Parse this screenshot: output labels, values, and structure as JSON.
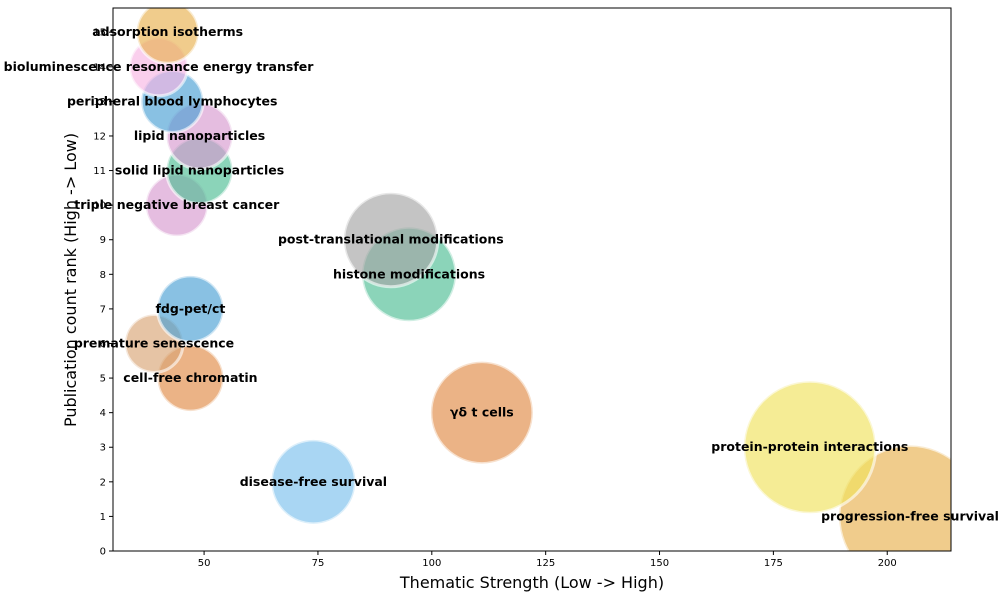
{
  "chart_data": {
    "type": "scatter",
    "title": "",
    "xlabel": "Thematic Strength (Low -> High)",
    "ylabel": "Publication count rank (High -> Low)",
    "xlim": [
      30,
      214
    ],
    "ylim": [
      0,
      15.7
    ],
    "xticks": [
      50,
      75,
      100,
      125,
      150,
      175,
      200
    ],
    "yticks": [
      0,
      1,
      2,
      3,
      4,
      5,
      6,
      7,
      8,
      9,
      10,
      11,
      12,
      13,
      14,
      15
    ],
    "grid": false,
    "points": [
      {
        "label": "progression-free survival",
        "x": 205,
        "y": 1,
        "size": 71,
        "color": "#e8b04f"
      },
      {
        "label": "disease-free survival",
        "x": 74,
        "y": 2,
        "size": 42,
        "color": "#7bc0ec"
      },
      {
        "label": "protein-protein interactions",
        "x": 183,
        "y": 3,
        "size": 66,
        "color": "#f0e25c"
      },
      {
        "label": "γδ t cells",
        "x": 111,
        "y": 4,
        "size": 51,
        "color": "#e08a45"
      },
      {
        "label": "cell-free chromatin",
        "x": 47,
        "y": 5,
        "size": 33,
        "color": "#e08a45"
      },
      {
        "label": "premature senescence",
        "x": 39,
        "y": 6,
        "size": 29,
        "color": "#d9a574"
      },
      {
        "label": "fdg-pet/ct",
        "x": 47,
        "y": 7,
        "size": 33,
        "color": "#4a9fd4"
      },
      {
        "label": "histone modifications",
        "x": 95,
        "y": 8,
        "size": 47,
        "color": "#4dbd94"
      },
      {
        "label": "post-translational modifications",
        "x": 91,
        "y": 9,
        "size": 47,
        "color": "#a5a5a5"
      },
      {
        "label": "triple negative breast cancer",
        "x": 44,
        "y": 10,
        "size": 31,
        "color": "#d79ad0"
      },
      {
        "label": "solid lipid nanoparticles",
        "x": 49,
        "y": 11,
        "size": 33,
        "color": "#4dbd94"
      },
      {
        "label": "lipid nanoparticles",
        "x": 49,
        "y": 12,
        "size": 33,
        "color": "#d79ad0"
      },
      {
        "label": "peripheral blood lymphocytes",
        "x": 43,
        "y": 13,
        "size": 31,
        "color": "#4a9fd4"
      },
      {
        "label": "bioluminescence resonance energy transfer",
        "x": 40,
        "y": 14,
        "size": 29,
        "color": "#f8b5e3"
      },
      {
        "label": "adsorption isotherms",
        "x": 42,
        "y": 15,
        "size": 31,
        "color": "#e8b04f"
      }
    ]
  }
}
